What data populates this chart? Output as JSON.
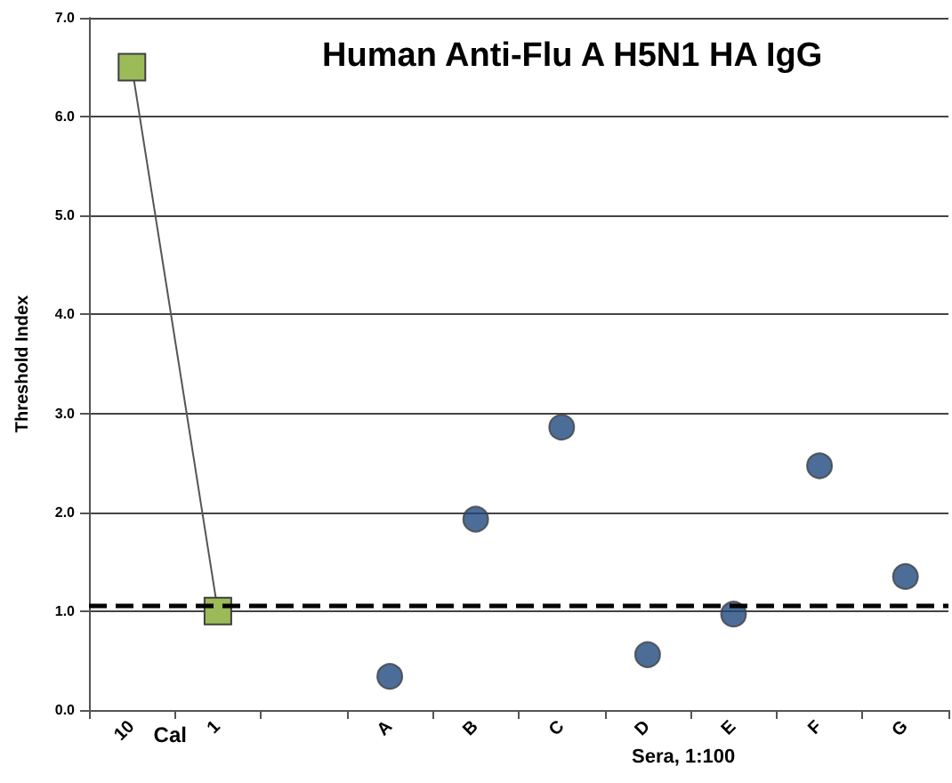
{
  "chart_data": {
    "type": "scatter",
    "title": "Human Anti-Flu A H5N1 HA IgG",
    "xlabel": "Sera, 1:100",
    "ylabel": "Threshold Index",
    "annotations": [
      "Cal"
    ],
    "categories": [
      "10",
      "1",
      null,
      "A",
      "B",
      "C",
      "D",
      "E",
      "F",
      "G"
    ],
    "series": [
      {
        "type": "line",
        "marker": "square",
        "color": "#9bbb59",
        "values": [
          6.5,
          1.0,
          null,
          null,
          null,
          null,
          null,
          null,
          null,
          null
        ]
      },
      {
        "marker": "circle",
        "color": "#1f497d",
        "values": [
          null,
          null,
          null,
          0.34,
          1.93,
          2.86,
          0.56,
          0.97,
          2.47,
          1.35
        ]
      }
    ],
    "ylim": [
      0,
      7
    ],
    "yticks": [
      {
        "value": 0,
        "label": "0.0"
      },
      {
        "value": 1,
        "label": "1.0"
      },
      {
        "value": 2,
        "label": "2.0"
      },
      {
        "value": 3,
        "label": "3.0"
      },
      {
        "value": 4,
        "label": "4.0"
      },
      {
        "value": 5,
        "label": "5.0"
      },
      {
        "value": 6,
        "label": "6.0"
      },
      {
        "value": 7,
        "label": "7.0"
      }
    ],
    "ref_lines": [
      {
        "axis": "y",
        "value": 1.05,
        "color": "#000000",
        "line_style": "dashed"
      }
    ],
    "grid": "y"
  }
}
